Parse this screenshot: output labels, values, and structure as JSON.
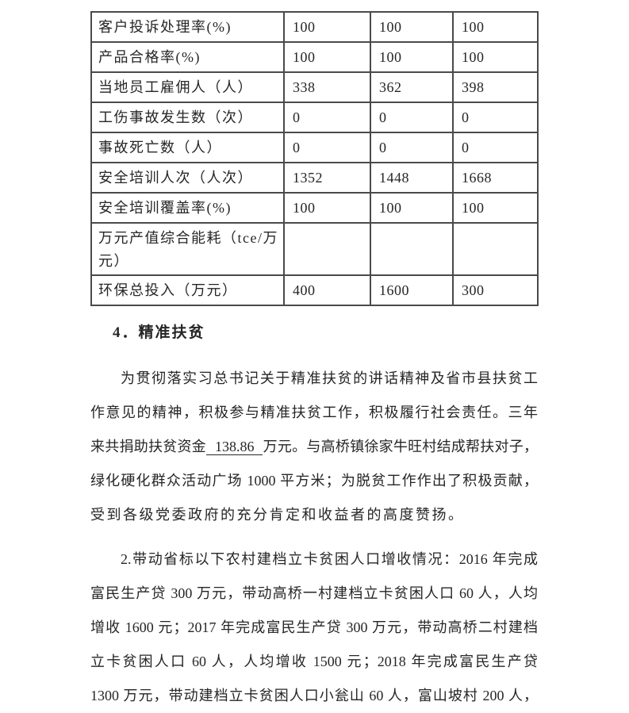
{
  "document": {
    "background": "#ffffff",
    "text_color": "#262626",
    "border_color": "#4a4a4a"
  },
  "heading": {
    "text": "4．精准扶贫"
  },
  "chart_data": {
    "type": "table",
    "title": "",
    "rows": [
      {
        "label": "客户投诉处理率(%)",
        "values": [
          "100",
          "100",
          "100"
        ]
      },
      {
        "label": "产品合格率(%)",
        "values": [
          "100",
          "100",
          "100"
        ]
      },
      {
        "label": "当地员工雇佣人（人）",
        "values": [
          "338",
          "362",
          "398"
        ]
      },
      {
        "label": "工伤事故发生数（次）",
        "values": [
          "0",
          "0",
          "0"
        ]
      },
      {
        "label": "事故死亡数（人）",
        "values": [
          "0",
          "0",
          "0"
        ]
      },
      {
        "label": "安全培训人次（人次）",
        "values": [
          "1352",
          "1448",
          "1668"
        ]
      },
      {
        "label": "安全培训覆盖率(%)",
        "values": [
          "100",
          "100",
          "100"
        ]
      },
      {
        "label": "万元产值综合能耗（tce/万元）",
        "values": [
          "",
          "",
          ""
        ],
        "tall": true
      },
      {
        "label": "环保总投入（万元）",
        "values": [
          "400",
          "1600",
          "300"
        ]
      }
    ]
  },
  "paragraphs": [
    {
      "name": "para-poverty-overview",
      "lines": [
        {
          "indent": true,
          "justify": true,
          "segments": [
            {
              "text": "为贯彻落实习总书记关于精准扶贫的讲话精神及省市县扶贫工"
            }
          ]
        },
        {
          "justify": true,
          "segments": [
            {
              "text": "作意见的精神，积极参与精准扶贫工作，积极履行社会责任。三年"
            }
          ]
        },
        {
          "justify": true,
          "segments": [
            {
              "text": "来共捐助扶贫资金"
            },
            {
              "text": "138.86",
              "underline": true
            },
            {
              "text": "万元。与高桥镇徐家牛旺村结成帮扶对子，"
            }
          ]
        },
        {
          "justify": true,
          "segments": [
            {
              "text": "绿化硬化群众活动广场 1000 平方米；为脱贫工作作出了积极贡献，"
            }
          ]
        },
        {
          "justify": false,
          "loose": true,
          "segments": [
            {
              "text": "受到各级党委政府的充分肯定和收益者的高度赞扬。"
            }
          ]
        }
      ]
    },
    {
      "name": "para-poverty-detail",
      "lines": [
        {
          "indent": true,
          "justify": true,
          "segments": [
            {
              "text": "2.带动省标以下农村建档立卡贫困人口增收情况：2016 年完成"
            }
          ]
        },
        {
          "justify": true,
          "segments": [
            {
              "text": "富民生产贷 300 万元，带动高桥一村建档立卡贫困人口 60 人，人均"
            }
          ]
        },
        {
          "justify": true,
          "segments": [
            {
              "text": "增收 1600 元；2017 年完成富民生产贷 300 万元，带动高桥二村建档"
            }
          ]
        },
        {
          "justify": true,
          "segments": [
            {
              "text": "立卡贫困人口 60 人，人均增收 1500 元；2018 年完成富民生产贷"
            }
          ]
        },
        {
          "justify": true,
          "segments": [
            {
              "text": "1300 万元，带动建档立卡贫困人口小瓮山 60 人，富山坡村 200 人，"
            }
          ]
        }
      ]
    }
  ]
}
